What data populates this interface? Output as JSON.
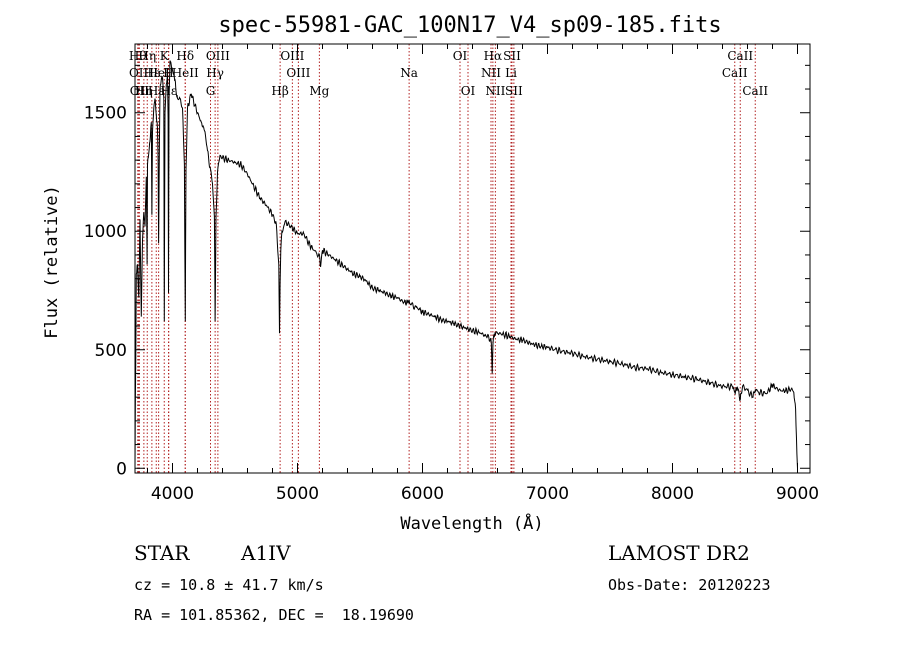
{
  "chart_data": {
    "type": "line",
    "title": "spec-55981-GAC_100N17_V4_sp09-185.fits",
    "xlabel": "Wavelength (Å)",
    "ylabel": "Flux (relative)",
    "xlim": [
      3700,
      9100
    ],
    "ylim": [
      -20,
      1790
    ],
    "xticks": [
      4000,
      5000,
      6000,
      7000,
      8000,
      9000
    ],
    "yticks": [
      0,
      500,
      1000,
      1500
    ],
    "grid": false,
    "series": [
      {
        "x": [
          3700,
          3703,
          3706,
          3710,
          3720,
          3730,
          3740,
          3750,
          3760,
          3770,
          3780,
          3790,
          3797,
          3800,
          3810,
          3820,
          3830,
          3835,
          3840,
          3850,
          3860,
          3870,
          3880,
          3885,
          3889,
          3895,
          3900,
          3910,
          3920,
          3930,
          3934,
          3940,
          3950,
          3960,
          3965,
          3968,
          3972,
          3980,
          3990,
          4000,
          4010,
          4020,
          4030,
          4040,
          4060,
          4080,
          4095,
          4102,
          4108,
          4120,
          4150,
          4180,
          4200,
          4230,
          4260,
          4280,
          4300,
          4320,
          4335,
          4341,
          4348,
          4360,
          4380,
          4400,
          4450,
          4500,
          4550,
          4600,
          4650,
          4700,
          4750,
          4800,
          4830,
          4850,
          4856,
          4861,
          4866,
          4875,
          4900,
          4950,
          5000,
          5050,
          5100,
          5150,
          5175,
          5185,
          5200,
          5250,
          5300,
          5350,
          5400,
          5450,
          5500,
          5550,
          5600,
          5650,
          5700,
          5750,
          5800,
          5850,
          5880,
          5893,
          5905,
          5950,
          6000,
          6050,
          6100,
          6150,
          6200,
          6250,
          6300,
          6350,
          6400,
          6450,
          6500,
          6530,
          6550,
          6558,
          6563,
          6568,
          6580,
          6600,
          6650,
          6700,
          6750,
          6800,
          6850,
          6900,
          6950,
          7000,
          7100,
          7200,
          7300,
          7400,
          7500,
          7600,
          7700,
          7800,
          7900,
          8000,
          8100,
          8200,
          8300,
          8400,
          8480,
          8498,
          8520,
          8542,
          8560,
          8600,
          8640,
          8662,
          8690,
          8750,
          8800,
          8850,
          8900,
          8950,
          8970,
          8985,
          8995,
          9000
        ],
        "y": [
          0,
          300,
          480,
          820,
          860,
          720,
          1050,
          640,
          960,
          1080,
          1020,
          1230,
          860,
          1280,
          1330,
          1380,
          1460,
          1070,
          1420,
          1520,
          1560,
          1490,
          1430,
          1300,
          950,
          1360,
          1600,
          1640,
          1650,
          1560,
          620,
          1500,
          1620,
          1660,
          1480,
          740,
          1550,
          1720,
          1700,
          1680,
          1660,
          1640,
          1580,
          1560,
          1560,
          1520,
          1280,
          620,
          1260,
          1520,
          1580,
          1530,
          1500,
          1460,
          1420,
          1340,
          1270,
          1200,
          1060,
          620,
          1060,
          1250,
          1320,
          1310,
          1300,
          1290,
          1280,
          1240,
          1190,
          1140,
          1110,
          1070,
          1030,
          860,
          570,
          780,
          920,
          1000,
          1040,
          1020,
          990,
          990,
          940,
          910,
          900,
          850,
          920,
          900,
          880,
          860,
          840,
          820,
          810,
          790,
          760,
          750,
          740,
          725,
          720,
          700,
          700,
          710,
          690,
          680,
          660,
          650,
          640,
          625,
          620,
          610,
          600,
          590,
          580,
          575,
          560,
          555,
          530,
          400,
          520,
          555,
          570,
          570,
          565,
          555,
          545,
          540,
          530,
          520,
          515,
          510,
          495,
          485,
          470,
          460,
          450,
          440,
          425,
          420,
          405,
          395,
          385,
          375,
          360,
          345,
          345,
          320,
          340,
          290,
          345,
          330,
          300,
          330,
          320,
          315,
          350,
          330,
          325,
          335,
          320,
          250,
          60,
          0
        ]
      }
    ],
    "lines": [
      {
        "w": 3722,
        "label": "Hθ",
        "row": 0
      },
      {
        "w": 3729,
        "label": "OII",
        "row": 1
      },
      {
        "w": 3735,
        "label": "OII",
        "row": 2
      },
      {
        "w": 3771,
        "label": "Hη",
        "row": 2
      },
      {
        "w": 3798,
        "label": "Hη",
        "row": 0
      },
      {
        "w": 3835,
        "label": "Hε",
        "row": 1
      },
      {
        "w": 3870,
        "label": "Hε",
        "row": 2
      },
      {
        "w": 3889,
        "label": "HeI",
        "row": 1
      },
      {
        "w": 3934,
        "label": "K",
        "row": 0
      },
      {
        "w": 3968,
        "label": "H",
        "row": 1
      },
      {
        "w": 3970,
        "label": "Hε",
        "row": 2
      },
      {
        "w": 4102,
        "label": "Hδ",
        "row": 0
      },
      {
        "w": 4102,
        "label": "HeII",
        "row": 1
      },
      {
        "w": 4304,
        "label": "G",
        "row": 2
      },
      {
        "w": 4341,
        "label": "Hγ",
        "row": 1
      },
      {
        "w": 4363,
        "label": "OIII",
        "row": 0
      },
      {
        "w": 4861,
        "label": "Hβ",
        "row": 2
      },
      {
        "w": 4959,
        "label": "OIII",
        "row": 0
      },
      {
        "w": 5007,
        "label": "OIII",
        "row": 1
      },
      {
        "w": 5175,
        "label": "Mg",
        "row": 2
      },
      {
        "w": 5893,
        "label": "Na",
        "row": 1
      },
      {
        "w": 6300,
        "label": "OI",
        "row": 0
      },
      {
        "w": 6364,
        "label": "OI",
        "row": 2
      },
      {
        "w": 6548,
        "label": "NII",
        "row": 1
      },
      {
        "w": 6563,
        "label": "Hα",
        "row": 0
      },
      {
        "w": 6583,
        "label": "NII",
        "row": 2
      },
      {
        "w": 6708,
        "label": "Li",
        "row": 1
      },
      {
        "w": 6716,
        "label": "SII",
        "row": 0
      },
      {
        "w": 6731,
        "label": "SII",
        "row": 2
      },
      {
        "w": 8498,
        "label": "CaII",
        "row": 1
      },
      {
        "w": 8542,
        "label": "CaII",
        "row": 0
      },
      {
        "w": 8662,
        "label": "CaII",
        "row": 2
      }
    ]
  },
  "info": {
    "object_class": "STAR",
    "subclass": "A1IV",
    "survey": "LAMOST DR2",
    "cz": "cz = 10.8 ± 41.7 km/s",
    "obs_date": "Obs-Date: 20120223",
    "coords": "RA = 101.85362, DEC =  18.19690"
  },
  "colors": {
    "line_marker": "#b22222",
    "spectrum": "#000000"
  }
}
